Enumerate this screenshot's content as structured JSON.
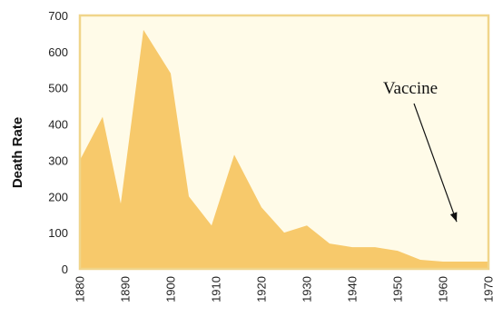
{
  "chart_data": {
    "type": "area",
    "ylabel": "Death Rate",
    "xlabel": "",
    "xlim": [
      1880,
      1970
    ],
    "ylim": [
      0,
      700
    ],
    "xticks": [
      1880,
      1890,
      1900,
      1910,
      1920,
      1930,
      1940,
      1950,
      1960,
      1970
    ],
    "yticks": [
      0,
      100,
      200,
      300,
      400,
      500,
      600,
      700
    ],
    "grid": false,
    "colors": {
      "fill": "#f7c96b",
      "frame": "#f0d58a",
      "background": "#fffbe8",
      "annotation": "#111111"
    },
    "annotation": {
      "text": "Vaccine",
      "points_to_x": 1963,
      "points_to_y": 130
    },
    "series": [
      {
        "x": [
          1880,
          1885,
          1889,
          1894,
          1900,
          1904,
          1909,
          1914,
          1920,
          1925,
          1930,
          1935,
          1940,
          1945,
          1950,
          1955,
          1960,
          1965,
          1970
        ],
        "values": [
          300,
          420,
          180,
          660,
          540,
          200,
          120,
          315,
          170,
          100,
          120,
          70,
          60,
          60,
          50,
          25,
          20,
          20,
          20
        ]
      }
    ]
  }
}
